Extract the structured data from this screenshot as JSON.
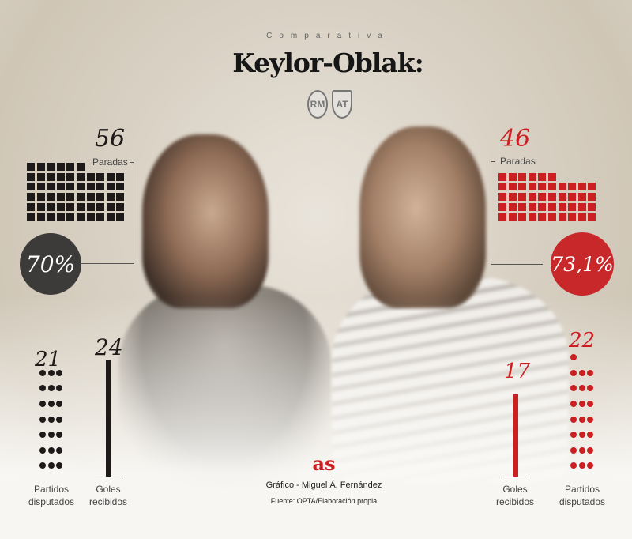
{
  "header": {
    "kicker": "Comparativa",
    "title": "Keylor-Oblak:",
    "crests": [
      "Real Madrid",
      "Atlético de Madrid"
    ]
  },
  "colors": {
    "keylor": "#1e1a19",
    "oblak": "#cc1f22",
    "keylor_circle": "#3d3a3a",
    "oblak_circle": "#c8282a"
  },
  "keylor": {
    "paradas_value": "56",
    "paradas_label": "Paradas",
    "pct": "70%",
    "partidos_value": "21",
    "partidos_label_1": "Partidos",
    "partidos_label_2": "disputados",
    "goles_value": "24",
    "goles_label_1": "Goles",
    "goles_label_2": "recibidos"
  },
  "oblak": {
    "paradas_value": "46",
    "paradas_label": "Paradas",
    "pct": "73,1%",
    "partidos_value": "22",
    "partidos_label_1": "Partidos",
    "partidos_label_2": "disputados",
    "goles_value": "17",
    "goles_label_1": "Goles",
    "goles_label_2": "recibidos"
  },
  "footer": {
    "logo": "as",
    "credit": "Gráfico - Miguel Á. Fernández",
    "source": "Fuente: OPTA/Elaboración propia"
  },
  "chart_data": {
    "type": "table",
    "categories": [
      "Paradas",
      "% paradas",
      "Partidos disputados",
      "Goles recibidos"
    ],
    "series": [
      {
        "name": "Keylor",
        "values": [
          56,
          70,
          21,
          24
        ]
      },
      {
        "name": "Oblak",
        "values": [
          46,
          73.1,
          22,
          17
        ]
      }
    ]
  }
}
